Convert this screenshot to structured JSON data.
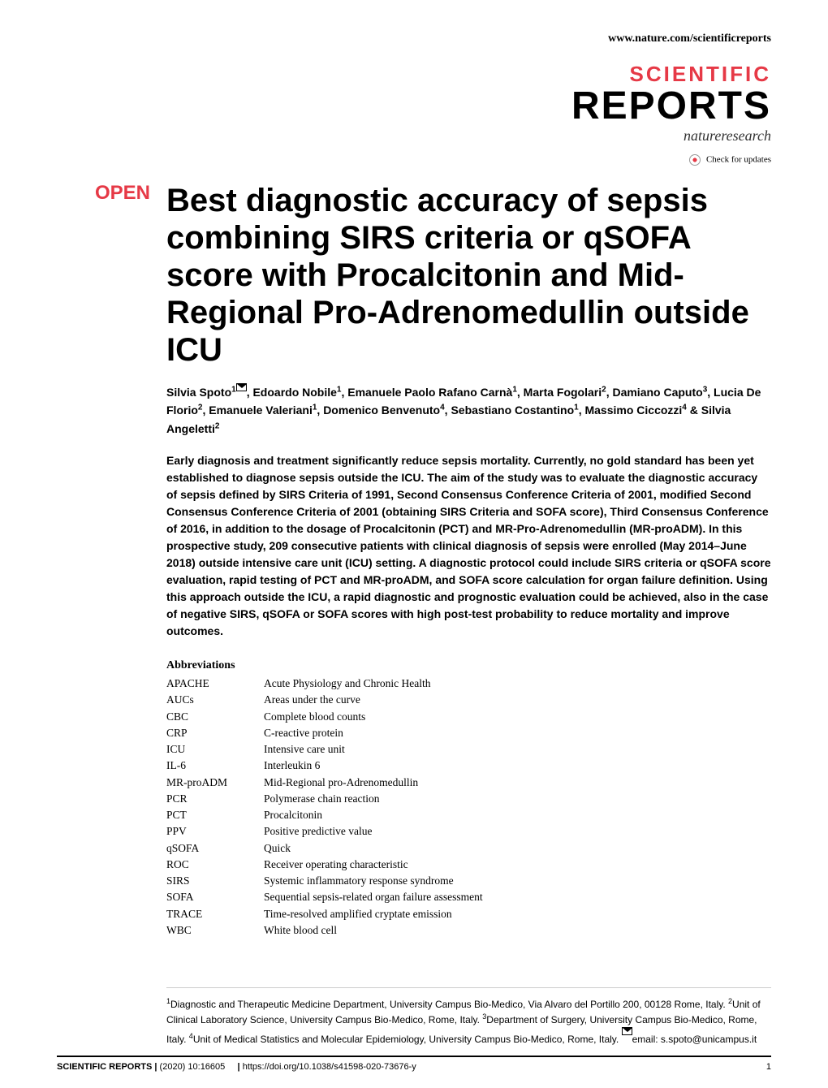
{
  "header": {
    "url": "www.nature.com/scientificreports"
  },
  "logo": {
    "line1": "SCIENTIFIC",
    "line2": "REPORTS",
    "subtitle": "natureresearch"
  },
  "check_updates": "Check for updates",
  "open_label": "OPEN",
  "title": "Best diagnostic accuracy of sepsis combining SIRS criteria or qSOFA score with Procalcitonin and Mid-Regional Pro-Adrenomedullin outside ICU",
  "authors_html": "Silvia Spoto<sup>1</sup><span class='mail-icon' data-name='mail-icon' data-interactable='false'></span>, Edoardo Nobile<sup>1</sup>, Emanuele Paolo Rafano Carnà<sup>1</sup>, Marta Fogolari<sup>2</sup>, Damiano Caputo<sup>3</sup>, Lucia De Florio<sup>2</sup>, Emanuele Valeriani<sup>1</sup>, Domenico Benvenuto<sup>4</sup>, Sebastiano Costantino<sup>1</sup>, Massimo Ciccozzi<sup>4</sup> & Silvia Angeletti<sup>2</sup>",
  "abstract": "Early diagnosis and treatment significantly reduce sepsis mortality. Currently, no gold standard has been yet established to diagnose sepsis outside the ICU. The aim of the study was to evaluate the diagnostic accuracy of sepsis defined by SIRS Criteria of 1991, Second Consensus Conference Criteria of 2001, modified Second Consensus Conference Criteria of 2001 (obtaining SIRS Criteria and SOFA score), Third Consensus Conference of 2016, in addition to the dosage of Procalcitonin (PCT) and MR-Pro-Adrenomedullin (MR-proADM). In this prospective study, 209 consecutive patients with clinical diagnosis of sepsis were enrolled (May 2014–June 2018) outside intensive care unit (ICU) setting. A diagnostic protocol could include SIRS criteria or qSOFA score evaluation, rapid testing of PCT and MR-proADM, and SOFA score calculation for organ failure definition. Using this approach outside the ICU, a rapid diagnostic and prognostic evaluation could be achieved, also in the case of negative SIRS, qSOFA or SOFA scores with high post-test probability to reduce mortality and improve outcomes.候",
  "abbreviations_heading": "Abbreviations",
  "abbreviations": [
    {
      "key": "APACHE",
      "val": "Acute Physiology and Chronic Health"
    },
    {
      "key": "AUCs",
      "val": "Areas under the curve"
    },
    {
      "key": "CBC",
      "val": "Complete blood counts"
    },
    {
      "key": "CRP",
      "val": "C-reactive protein"
    },
    {
      "key": "ICU",
      "val": "Intensive care unit"
    },
    {
      "key": "IL-6",
      "val": "Interleukin 6"
    },
    {
      "key": "MR-proADM",
      "val": "Mid-Regional pro-Adrenomedullin"
    },
    {
      "key": "PCR",
      "val": "Polymerase chain reaction"
    },
    {
      "key": "PCT",
      "val": "Procalcitonin"
    },
    {
      "key": "PPV",
      "val": "Positive predictive value"
    },
    {
      "key": "qSOFA",
      "val": "Quick"
    },
    {
      "key": "ROC",
      "val": "Receiver operating characteristic"
    },
    {
      "key": "SIRS",
      "val": "Systemic inflammatory response syndrome"
    },
    {
      "key": "SOFA",
      "val": "Sequential sepsis-related organ failure assessment"
    },
    {
      "key": "TRACE",
      "val": "Time-resolved amplified cryptate emission"
    },
    {
      "key": "WBC",
      "val": "White blood cell"
    }
  ],
  "affiliations_html": "<sup>1</sup>Diagnostic and Therapeutic Medicine Department, University Campus Bio-Medico, Via Alvaro del Portillo 200, 00128 Rome, Italy. <sup>2</sup>Unit of Clinical Laboratory Science, University Campus Bio-Medico, Rome, Italy. <sup>3</sup>Department of Surgery, University Campus Bio-Medico, Rome, Italy. <sup>4</sup>Unit of Medical Statistics and Molecular Epidemiology, University Campus Bio-Medico, Rome, Italy. <sup><span class='mail-icon' data-name='mail-icon' data-interactable='false'></span></sup>email: s.spoto@unicampus.it",
  "footer": {
    "journal": "SCIENTIFIC REPORTS",
    "citation": "(2020) 10:16605",
    "doi": "https://doi.org/10.1038/s41598-020-73676-y",
    "page": "1"
  },
  "colors": {
    "accent": "#e63946",
    "text": "#000000",
    "background": "#ffffff"
  }
}
